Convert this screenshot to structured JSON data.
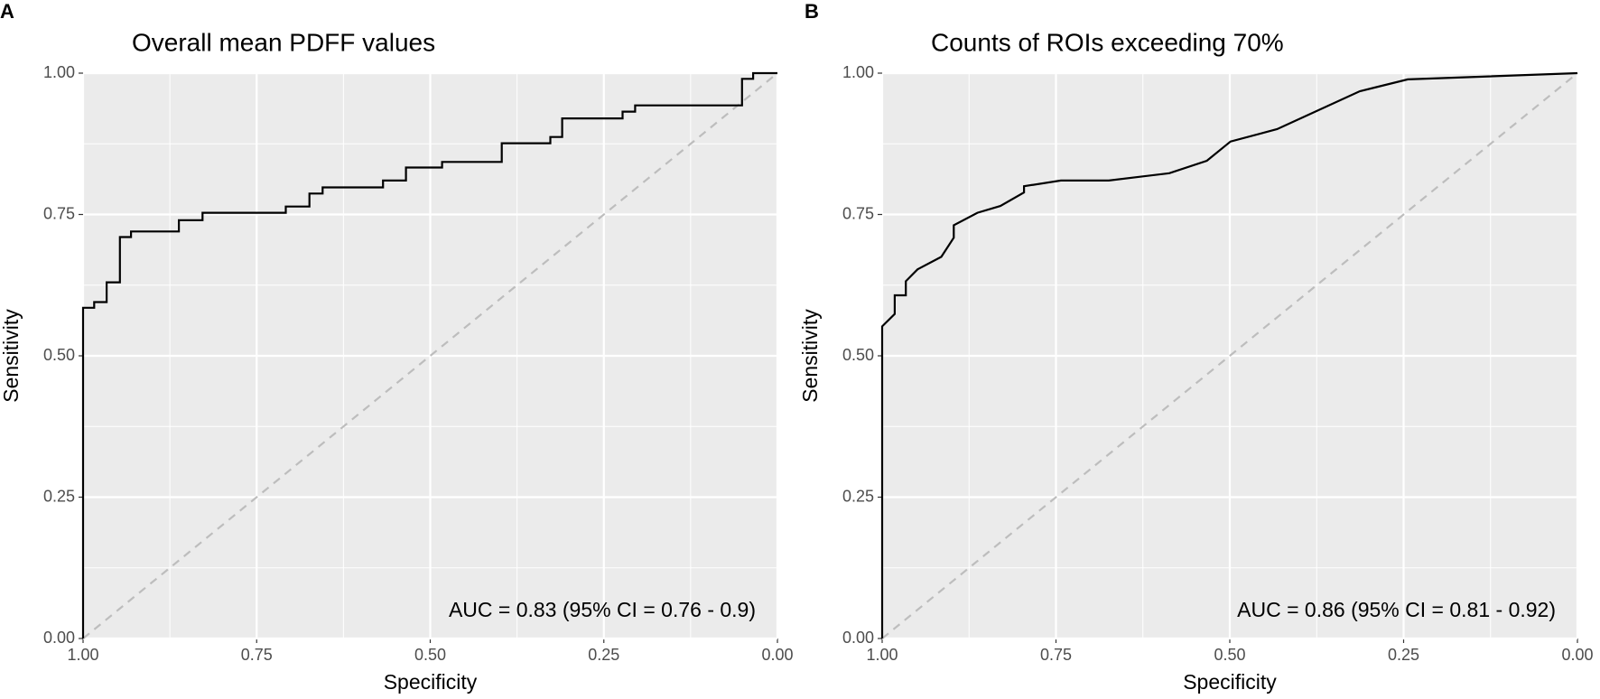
{
  "chart_data": [
    {
      "type": "line",
      "tag": "A",
      "title": "Overall mean PDFF values",
      "xlabel": "Specificity",
      "ylabel": "Sensitivity",
      "annotation": "AUC = 0.83 (95% CI = 0.76 - 0.9)",
      "xlim": [
        1,
        0
      ],
      "ylim": [
        0,
        1
      ],
      "xticks": [
        {
          "value": 1,
          "label": "1.00"
        },
        {
          "value": 0.75,
          "label": "0.75"
        },
        {
          "value": 0.5,
          "label": "0.50"
        },
        {
          "value": 0.25,
          "label": "0.25"
        },
        {
          "value": 0,
          "label": "0.00"
        }
      ],
      "yticks": [
        {
          "value": 0,
          "label": "0.00"
        },
        {
          "value": 0.25,
          "label": "0.25"
        },
        {
          "value": 0.5,
          "label": "0.50"
        },
        {
          "value": 0.75,
          "label": "0.75"
        },
        {
          "value": 1,
          "label": "1.00"
        }
      ],
      "grid": true,
      "minor_grid": true,
      "color": "#000000",
      "x": [
        1,
        1,
        0.984,
        0.984,
        0.966,
        0.966,
        0.947,
        0.947,
        0.931,
        0.931,
        0.862,
        0.862,
        0.828,
        0.828,
        0.708,
        0.708,
        0.674,
        0.674,
        0.655,
        0.655,
        0.568,
        0.568,
        0.535,
        0.535,
        0.483,
        0.483,
        0.397,
        0.397,
        0.327,
        0.327,
        0.31,
        0.31,
        0.223,
        0.223,
        0.205,
        0.205,
        0.051,
        0.051,
        0.035,
        0.035,
        0
      ],
      "values": [
        0,
        0.585,
        0.585,
        0.595,
        0.595,
        0.63,
        0.63,
        0.71,
        0.71,
        0.72,
        0.72,
        0.74,
        0.74,
        0.753,
        0.753,
        0.764,
        0.764,
        0.787,
        0.787,
        0.798,
        0.798,
        0.81,
        0.81,
        0.833,
        0.833,
        0.843,
        0.843,
        0.876,
        0.876,
        0.887,
        0.887,
        0.92,
        0.92,
        0.932,
        0.932,
        0.943,
        0.943,
        0.99,
        0.99,
        1,
        1
      ]
    },
    {
      "type": "line",
      "tag": "B",
      "title": "Counts of ROIs exceeding 70%",
      "xlabel": "Specificity",
      "ylabel": "Sensitivity",
      "annotation": "AUC = 0.86 (95% CI = 0.81 - 0.92)",
      "xlim": [
        1,
        0
      ],
      "ylim": [
        0,
        1
      ],
      "xticks": [
        {
          "value": 1,
          "label": "1.00"
        },
        {
          "value": 0.75,
          "label": "0.75"
        },
        {
          "value": 0.5,
          "label": "0.50"
        },
        {
          "value": 0.25,
          "label": "0.25"
        },
        {
          "value": 0,
          "label": "0.00"
        }
      ],
      "yticks": [
        {
          "value": 0,
          "label": "0.00"
        },
        {
          "value": 0.25,
          "label": "0.25"
        },
        {
          "value": 0.5,
          "label": "0.50"
        },
        {
          "value": 0.75,
          "label": "0.75"
        },
        {
          "value": 1,
          "label": "1.00"
        }
      ],
      "grid": true,
      "minor_grid": true,
      "color": "#000000",
      "x": [
        1,
        1,
        0.982,
        0.982,
        0.966,
        0.966,
        0.949,
        0.915,
        0.897,
        0.897,
        0.863,
        0.83,
        0.796,
        0.796,
        0.743,
        0.674,
        0.587,
        0.533,
        0.499,
        0.432,
        0.313,
        0.244,
        0
      ],
      "values": [
        0,
        0.552,
        0.574,
        0.607,
        0.607,
        0.632,
        0.653,
        0.675,
        0.709,
        0.731,
        0.753,
        0.765,
        0.789,
        0.8,
        0.81,
        0.81,
        0.823,
        0.845,
        0.879,
        0.901,
        0.968,
        0.989,
        1
      ]
    }
  ]
}
